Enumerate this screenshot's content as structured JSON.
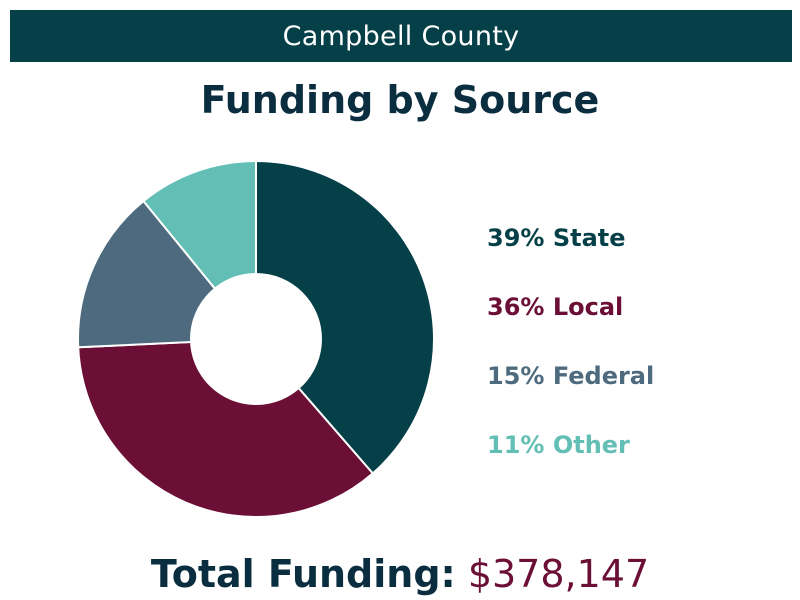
{
  "header": {
    "county": "Campbell County"
  },
  "chart_data": {
    "type": "pie",
    "title": "Funding by Source",
    "slices": [
      {
        "label": "State",
        "percent": 39,
        "color": "#053f47"
      },
      {
        "label": "Local",
        "percent": 36,
        "color": "#6b0f36"
      },
      {
        "label": "Federal",
        "percent": 15,
        "color": "#4e6a7e"
      },
      {
        "label": "Other",
        "percent": 11,
        "color": "#63bfb6"
      }
    ],
    "legend": [
      {
        "pct_text": "39%",
        "label": "State",
        "color": "#053f47"
      },
      {
        "pct_text": "36%",
        "label": "Local",
        "color": "#6b0f36"
      },
      {
        "pct_text": "15%",
        "label": "Federal",
        "color": "#4e6a7e"
      },
      {
        "pct_text": "11%",
        "label": "Other",
        "color": "#63bfb6"
      }
    ],
    "legend_position": "right",
    "total_label": "Total Funding:",
    "total_value": "$378,147"
  }
}
